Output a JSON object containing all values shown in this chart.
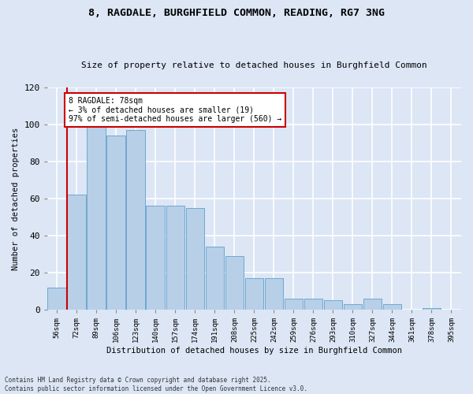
{
  "title_line1": "8, RAGDALE, BURGHFIELD COMMON, READING, RG7 3NG",
  "title_line2": "Size of property relative to detached houses in Burghfield Common",
  "xlabel": "Distribution of detached houses by size in Burghfield Common",
  "ylabel": "Number of detached properties",
  "footnote": "Contains HM Land Registry data © Crown copyright and database right 2025.\nContains public sector information licensed under the Open Government Licence v3.0.",
  "categories": [
    "56sqm",
    "72sqm",
    "89sqm",
    "106sqm",
    "123sqm",
    "140sqm",
    "157sqm",
    "174sqm",
    "191sqm",
    "208sqm",
    "225sqm",
    "242sqm",
    "259sqm",
    "276sqm",
    "293sqm",
    "310sqm",
    "327sqm",
    "344sqm",
    "361sqm",
    "378sqm",
    "395sqm"
  ],
  "values": [
    12,
    62,
    101,
    94,
    97,
    56,
    56,
    55,
    34,
    29,
    17,
    17,
    6,
    6,
    5,
    3,
    6,
    3,
    0,
    1,
    0
  ],
  "bar_color": "#b8cfe8",
  "bar_edge_color": "#6fa8d0",
  "background_color": "#dce6f5",
  "grid_color": "#ffffff",
  "annotation_text": "8 RAGDALE: 78sqm\n← 3% of detached houses are smaller (19)\n97% of semi-detached houses are larger (560) →",
  "vline_color": "#cc0000",
  "annotation_box_color": "#ffffff",
  "annotation_box_edge_color": "#cc0000",
  "ylim": [
    0,
    120
  ],
  "yticks": [
    0,
    20,
    40,
    60,
    80,
    100,
    120
  ]
}
